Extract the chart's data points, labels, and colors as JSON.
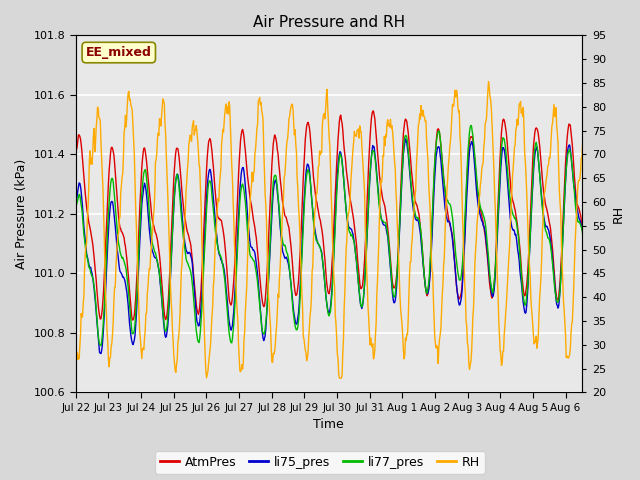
{
  "title": "Air Pressure and RH",
  "ylabel_left": "Air Pressure (kPa)",
  "ylabel_right": "RH",
  "xlabel": "Time",
  "ylim_left": [
    100.6,
    101.8
  ],
  "ylim_right": [
    20,
    95
  ],
  "yticks_left": [
    100.6,
    100.8,
    101.0,
    101.2,
    101.4,
    101.6,
    101.8
  ],
  "yticks_right": [
    20,
    25,
    30,
    35,
    40,
    45,
    50,
    55,
    60,
    65,
    70,
    75,
    80,
    85,
    90,
    95
  ],
  "xtick_labels": [
    "Jul 22",
    "Jul 23",
    "Jul 24",
    "Jul 25",
    "Jul 26",
    "Jul 27",
    "Jul 28",
    "Jul 29",
    "Jul 30",
    "Jul 31",
    "Aug 1",
    "Aug 2",
    "Aug 3",
    "Aug 4",
    "Aug 5",
    "Aug 6"
  ],
  "annotation_text": "EE_mixed",
  "annotation_box_facecolor": "#ffffcc",
  "annotation_box_edgecolor": "#888800",
  "annotation_text_color": "#8B0000",
  "colors": {
    "AtmPres": "#dd0000",
    "li75_pres": "#0000cc",
    "li77_pres": "#00bb00",
    "RH": "#ffaa00"
  },
  "fig_facecolor": "#d8d8d8",
  "plot_facecolor": "#e8e8e8",
  "grid_color": "#ffffff",
  "n_days": 16,
  "seed": 42
}
